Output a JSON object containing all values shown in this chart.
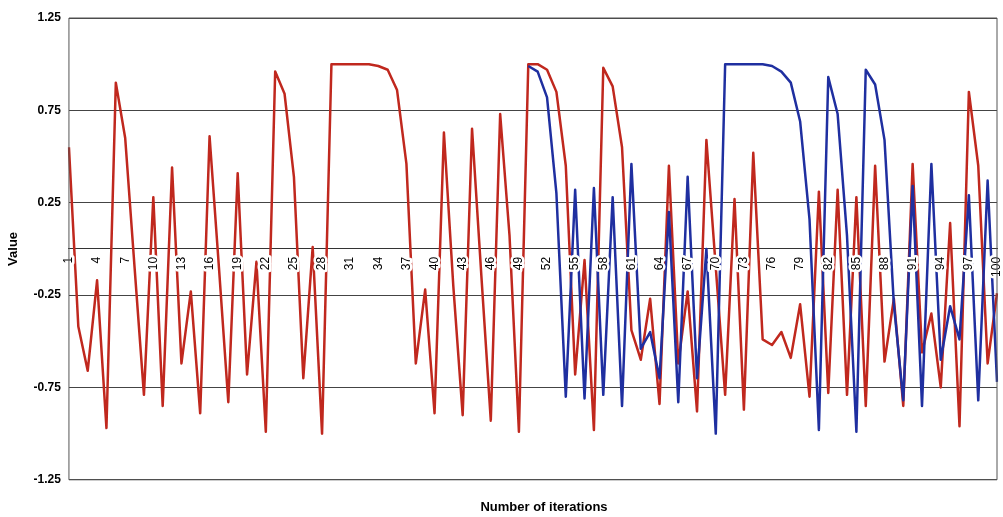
{
  "chart_data": {
    "type": "line",
    "xlabel": "Number of iterations",
    "ylabel": "Value",
    "categories": [
      "1",
      null,
      null,
      "4",
      null,
      null,
      "7",
      null,
      null,
      "10",
      null,
      null,
      "13",
      null,
      null,
      "16",
      null,
      null,
      "19",
      null,
      null,
      "22",
      null,
      null,
      "25",
      null,
      null,
      "28",
      null,
      null,
      "31",
      null,
      null,
      "34",
      null,
      null,
      "37",
      null,
      null,
      "40",
      null,
      null,
      "43",
      null,
      null,
      "46",
      null,
      null,
      "49",
      null,
      null,
      "52",
      null,
      null,
      "55",
      null,
      null,
      "58",
      null,
      null,
      "61",
      null,
      null,
      "64",
      null,
      null,
      "67",
      null,
      null,
      "70",
      null,
      null,
      "73",
      null,
      null,
      "76",
      null,
      null,
      "79",
      null,
      null,
      "82",
      null,
      null,
      "85",
      null,
      null,
      "88",
      null,
      null,
      "91",
      null,
      null,
      "94",
      null,
      null,
      "97",
      null,
      null,
      "100"
    ],
    "series": [
      {
        "color": "#1f2fa0",
        "values": [
          null,
          null,
          null,
          null,
          null,
          null,
          null,
          null,
          null,
          null,
          null,
          null,
          null,
          null,
          null,
          null,
          null,
          null,
          null,
          null,
          null,
          null,
          null,
          null,
          null,
          null,
          null,
          null,
          null,
          null,
          null,
          null,
          null,
          null,
          null,
          null,
          null,
          null,
          null,
          null,
          null,
          null,
          null,
          null,
          null,
          null,
          null,
          null,
          null,
          0.99,
          0.96,
          0.82,
          0.3,
          -0.8,
          0.32,
          -0.81,
          0.33,
          -0.79,
          0.28,
          -0.85,
          0.46,
          -0.54,
          -0.45,
          -0.7,
          0.2,
          -0.83,
          0.39,
          -0.7,
          0.0,
          -1.0,
          1.0,
          1.0,
          1.0,
          1.0,
          1.0,
          0.99,
          0.96,
          0.9,
          0.69,
          0.16,
          -0.98,
          0.93,
          0.73,
          0.07,
          -0.99,
          0.97,
          0.89,
          0.59,
          -0.3,
          -0.82,
          0.34,
          -0.85,
          0.46,
          -0.6,
          -0.31,
          -0.49,
          0.29,
          -0.82,
          0.37,
          -0.72
        ]
      },
      {
        "color": "#c0281e",
        "values": [
          0.55,
          -0.42,
          -0.66,
          -0.17,
          -0.97,
          0.9,
          0.6,
          -0.1,
          -0.79,
          0.28,
          -0.85,
          0.44,
          -0.62,
          -0.23,
          -0.89,
          0.61,
          -0.1,
          -0.83,
          0.41,
          -0.68,
          -0.07,
          -0.99,
          0.96,
          0.84,
          0.39,
          -0.7,
          0.01,
          -1.0,
          1.0,
          1.0,
          1.0,
          1.0,
          1.0,
          0.99,
          0.97,
          0.86,
          0.46,
          -0.62,
          -0.22,
          -0.89,
          0.63,
          -0.2,
          -0.9,
          0.65,
          -0.15,
          -0.93,
          0.73,
          0.07,
          -0.99,
          1.0,
          1.0,
          0.97,
          0.85,
          0.45,
          -0.68,
          -0.06,
          -0.98,
          0.98,
          0.88,
          0.55,
          -0.44,
          -0.6,
          -0.27,
          -0.84,
          0.45,
          -0.62,
          -0.23,
          -0.88,
          0.59,
          -0.1,
          -0.79,
          0.27,
          -0.87,
          0.52,
          -0.49,
          -0.52,
          -0.45,
          -0.59,
          -0.3,
          -0.8,
          0.31,
          -0.78,
          0.32,
          -0.79,
          0.28,
          -0.85,
          0.45,
          -0.61,
          -0.27,
          -0.85,
          0.46,
          -0.56,
          -0.35,
          -0.75,
          0.14,
          -0.96,
          0.85,
          0.45,
          -0.62,
          -0.24
        ]
      }
    ],
    "ylim": [
      -1.25,
      1.25
    ],
    "yticks": [
      -1.25,
      -0.75,
      -0.25,
      0.25,
      0.75,
      1.25
    ],
    "grid": "y",
    "marker": "none",
    "line_style": "solid"
  }
}
